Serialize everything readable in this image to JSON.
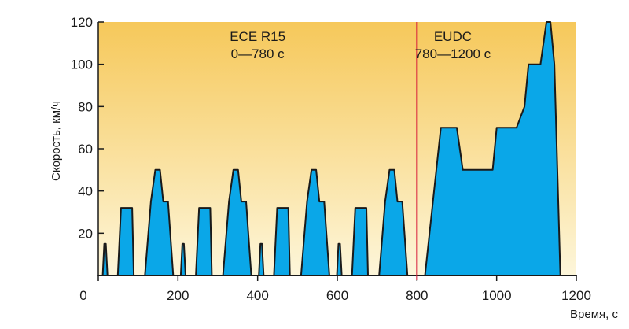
{
  "chart_data": {
    "type": "area",
    "title": "",
    "xlabel": "Время, с",
    "ylabel": "Скорость, км/ч",
    "xlim": [
      0,
      1200
    ],
    "ylim": [
      0,
      120
    ],
    "xticks": [
      "0",
      "200",
      "400",
      "600",
      "800",
      "1000",
      "1200"
    ],
    "xtick_values": [
      0,
      200,
      400,
      600,
      800,
      1000,
      1200
    ],
    "yticks": [
      "20",
      "40",
      "60",
      "80",
      "100",
      "120"
    ],
    "ytick_values": [
      20,
      40,
      60,
      80,
      100,
      120
    ],
    "grid": false,
    "fill_color": "#0aa7e8",
    "background_top": "#f6c85a",
    "background_bottom": "#fdf6da",
    "divider": {
      "x": 800,
      "color": "#d81e3a"
    },
    "regions": [
      {
        "name": "ECE R15",
        "range": "0—780 с",
        "center_x": 400
      },
      {
        "name": "EUDC",
        "range": "780—1200 с",
        "center_x": 890
      }
    ],
    "series": [
      {
        "x": [
          0,
          11,
          15,
          19,
          23,
          28,
          49,
          57,
          61,
          85,
          89,
          117,
          132,
          143,
          155,
          163,
          175,
          188,
          196,
          207,
          211,
          215,
          219,
          224,
          245,
          253,
          257,
          281,
          285,
          313,
          328,
          339,
          351,
          359,
          371,
          384,
          392,
          403,
          407,
          411,
          415,
          420,
          441,
          449,
          453,
          477,
          481,
          509,
          524,
          535,
          547,
          555,
          567,
          580,
          588,
          599,
          603,
          607,
          611,
          616,
          637,
          645,
          649,
          673,
          677,
          705,
          720,
          731,
          743,
          751,
          763,
          776,
          800,
          820,
          860,
          900,
          915,
          990,
          1000,
          1050,
          1070,
          1080,
          1110,
          1125,
          1135,
          1145,
          1160,
          1180,
          1200
        ],
        "y": [
          0,
          0,
          15,
          15,
          0,
          0,
          0,
          32,
          32,
          32,
          0,
          0,
          35,
          50,
          50,
          35,
          35,
          0,
          0,
          0,
          15,
          15,
          0,
          0,
          0,
          32,
          32,
          32,
          0,
          0,
          35,
          50,
          50,
          35,
          35,
          0,
          0,
          0,
          15,
          15,
          0,
          0,
          0,
          32,
          32,
          32,
          0,
          0,
          35,
          50,
          50,
          35,
          35,
          0,
          0,
          0,
          15,
          15,
          0,
          0,
          0,
          32,
          32,
          32,
          0,
          0,
          35,
          50,
          50,
          35,
          35,
          0,
          0,
          0,
          70,
          70,
          50,
          50,
          70,
          70,
          80,
          100,
          100,
          120,
          120,
          100,
          0,
          0,
          0
        ]
      }
    ]
  }
}
